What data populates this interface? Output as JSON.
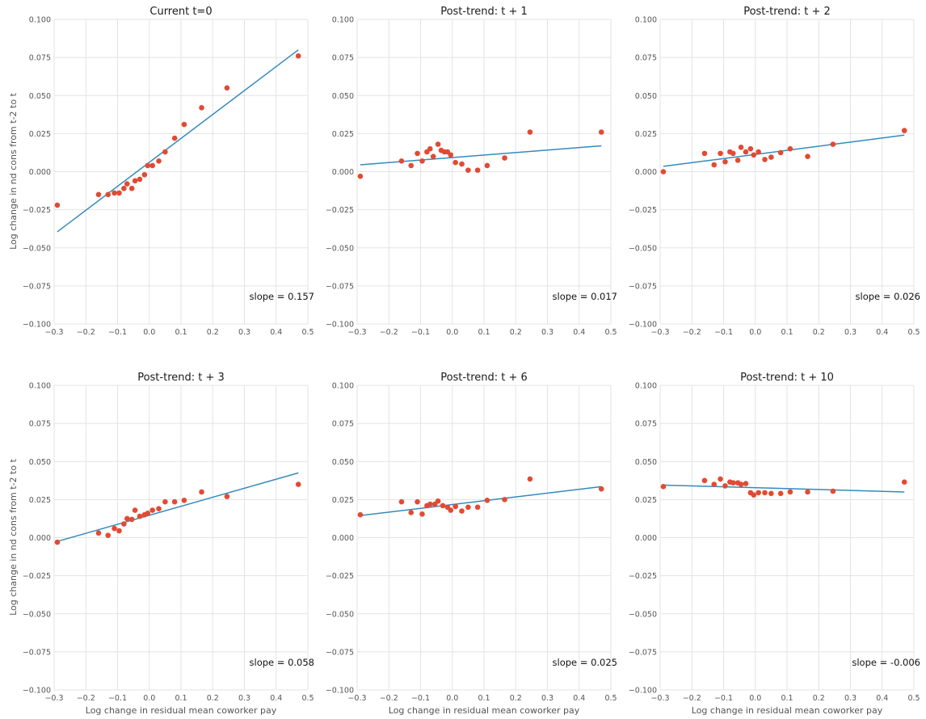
{
  "figure": {
    "ylabel": "Log change in nd cons from t-2 to t",
    "xlabel": "Log change in residual mean coworker pay"
  },
  "chart_data": [
    {
      "type": "scatter",
      "title": "Current t=0",
      "xlim": [
        -0.3,
        0.5
      ],
      "ylim": [
        -0.1,
        0.1
      ],
      "xticks": [
        "−0.3",
        "−0.2",
        "−0.1",
        "0.0",
        "0.1",
        "0.2",
        "0.3",
        "0.4",
        "0.5"
      ],
      "yticks": [
        "−0.100",
        "−0.075",
        "−0.050",
        "−0.025",
        "0.000",
        "0.025",
        "0.050",
        "0.075",
        "0.100"
      ],
      "grid": true,
      "x": [
        -0.29,
        -0.16,
        -0.13,
        -0.11,
        -0.095,
        -0.08,
        -0.07,
        -0.055,
        -0.045,
        -0.03,
        -0.015,
        -0.005,
        0.01,
        0.03,
        0.05,
        0.08,
        0.11,
        0.165,
        0.245,
        0.47
      ],
      "y": [
        -0.022,
        -0.015,
        -0.015,
        -0.014,
        -0.014,
        -0.011,
        -0.008,
        -0.011,
        -0.006,
        -0.005,
        -0.002,
        0.004,
        0.004,
        0.007,
        0.013,
        0.022,
        0.031,
        0.042,
        0.055,
        0.076
      ],
      "fit": {
        "x": [
          -0.29,
          0.47
        ],
        "y": [
          -0.0395,
          0.08
        ]
      },
      "annotation": "slope = 0.157"
    },
    {
      "type": "scatter",
      "title": "Post-trend: t + 1",
      "xlim": [
        -0.3,
        0.5
      ],
      "ylim": [
        -0.1,
        0.1
      ],
      "xticks": [
        "−0.3",
        "−0.2",
        "−0.1",
        "0.0",
        "0.1",
        "0.2",
        "0.3",
        "0.4",
        "0.5"
      ],
      "yticks": [
        "−0.100",
        "−0.075",
        "−0.050",
        "−0.025",
        "0.000",
        "0.025",
        "0.050",
        "0.075",
        "0.100"
      ],
      "grid": true,
      "x": [
        -0.29,
        -0.16,
        -0.13,
        -0.11,
        -0.095,
        -0.08,
        -0.07,
        -0.06,
        -0.045,
        -0.035,
        -0.025,
        -0.015,
        -0.005,
        0.01,
        0.03,
        0.05,
        0.08,
        0.11,
        0.165,
        0.245,
        0.47
      ],
      "y": [
        -0.003,
        0.007,
        0.004,
        0.012,
        0.007,
        0.013,
        0.015,
        0.01,
        0.018,
        0.014,
        0.013,
        0.013,
        0.011,
        0.006,
        0.005,
        0.001,
        0.001,
        0.004,
        0.009,
        0.026,
        0.026
      ],
      "fit": {
        "x": [
          -0.29,
          0.47
        ],
        "y": [
          0.0045,
          0.017
        ]
      },
      "annotation": "slope = 0.017"
    },
    {
      "type": "scatter",
      "title": "Post-trend: t + 2",
      "xlim": [
        -0.3,
        0.5
      ],
      "ylim": [
        -0.1,
        0.1
      ],
      "xticks": [
        "−0.3",
        "−0.2",
        "−0.1",
        "0.0",
        "0.1",
        "0.2",
        "0.3",
        "0.4",
        "0.5"
      ],
      "yticks": [
        "−0.100",
        "−0.075",
        "−0.050",
        "−0.025",
        "0.000",
        "0.025",
        "0.050",
        "0.075",
        "0.100"
      ],
      "grid": true,
      "x": [
        -0.29,
        -0.16,
        -0.13,
        -0.11,
        -0.095,
        -0.08,
        -0.07,
        -0.055,
        -0.045,
        -0.03,
        -0.015,
        -0.005,
        0.01,
        0.03,
        0.05,
        0.08,
        0.11,
        0.165,
        0.245,
        0.47
      ],
      "y": [
        0.0,
        0.012,
        0.0045,
        0.012,
        0.0065,
        0.013,
        0.012,
        0.0075,
        0.016,
        0.013,
        0.015,
        0.011,
        0.013,
        0.008,
        0.0095,
        0.0125,
        0.015,
        0.01,
        0.018,
        0.027
      ],
      "fit": {
        "x": [
          -0.29,
          0.47
        ],
        "y": [
          0.0035,
          0.024
        ]
      },
      "annotation": "slope = 0.026"
    },
    {
      "type": "scatter",
      "title": "Post-trend: t + 3",
      "xlim": [
        -0.3,
        0.5
      ],
      "ylim": [
        -0.1,
        0.1
      ],
      "xticks": [
        "−0.3",
        "−0.2",
        "−0.1",
        "0.0",
        "0.1",
        "0.2",
        "0.3",
        "0.4",
        "0.5"
      ],
      "yticks": [
        "−0.100",
        "−0.075",
        "−0.050",
        "−0.025",
        "0.000",
        "0.025",
        "0.050",
        "0.075",
        "0.100"
      ],
      "grid": true,
      "x": [
        -0.29,
        -0.16,
        -0.13,
        -0.11,
        -0.095,
        -0.08,
        -0.07,
        -0.055,
        -0.045,
        -0.03,
        -0.015,
        -0.005,
        0.01,
        0.03,
        0.05,
        0.08,
        0.11,
        0.165,
        0.245,
        0.47
      ],
      "y": [
        -0.003,
        0.003,
        0.0015,
        0.006,
        0.0045,
        0.009,
        0.0125,
        0.012,
        0.018,
        0.014,
        0.015,
        0.016,
        0.018,
        0.019,
        0.0235,
        0.0235,
        0.0245,
        0.03,
        0.027,
        0.035
      ],
      "fit": {
        "x": [
          -0.29,
          0.47
        ],
        "y": [
          -0.0025,
          0.0425
        ]
      },
      "annotation": "slope = 0.058"
    },
    {
      "type": "scatter",
      "title": "Post-trend: t + 6",
      "xlim": [
        -0.3,
        0.5
      ],
      "ylim": [
        -0.1,
        0.1
      ],
      "xticks": [
        "−0.3",
        "−0.2",
        "−0.1",
        "0.0",
        "0.1",
        "0.2",
        "0.3",
        "0.4",
        "0.5"
      ],
      "yticks": [
        "−0.100",
        "−0.075",
        "−0.050",
        "−0.025",
        "0.000",
        "0.025",
        "0.050",
        "0.075",
        "0.100"
      ],
      "grid": true,
      "x": [
        -0.29,
        -0.16,
        -0.13,
        -0.11,
        -0.095,
        -0.08,
        -0.07,
        -0.055,
        -0.045,
        -0.03,
        -0.015,
        -0.005,
        0.01,
        0.03,
        0.05,
        0.08,
        0.11,
        0.165,
        0.245,
        0.47
      ],
      "y": [
        0.015,
        0.0235,
        0.0165,
        0.0235,
        0.0155,
        0.021,
        0.022,
        0.022,
        0.024,
        0.021,
        0.02,
        0.018,
        0.0205,
        0.0175,
        0.02,
        0.02,
        0.0245,
        0.025,
        0.0385,
        0.032
      ],
      "fit": {
        "x": [
          -0.29,
          0.47
        ],
        "y": [
          0.0145,
          0.0335
        ]
      },
      "annotation": "slope = 0.025"
    },
    {
      "type": "scatter",
      "title": "Post-trend: t + 10",
      "xlim": [
        -0.3,
        0.5
      ],
      "ylim": [
        -0.1,
        0.1
      ],
      "xticks": [
        "−0.3",
        "−0.2",
        "−0.1",
        "0.0",
        "0.1",
        "0.2",
        "0.3",
        "0.4",
        "0.5"
      ],
      "yticks": [
        "−0.100",
        "−0.075",
        "−0.050",
        "−0.025",
        "0.000",
        "0.025",
        "0.050",
        "0.075",
        "0.100"
      ],
      "grid": true,
      "x": [
        -0.29,
        -0.16,
        -0.13,
        -0.11,
        -0.095,
        -0.08,
        -0.07,
        -0.055,
        -0.045,
        -0.03,
        -0.015,
        -0.005,
        0.01,
        0.03,
        0.05,
        0.08,
        0.11,
        0.165,
        0.245,
        0.47
      ],
      "y": [
        0.0335,
        0.0375,
        0.035,
        0.0385,
        0.034,
        0.0365,
        0.036,
        0.036,
        0.035,
        0.0355,
        0.0295,
        0.028,
        0.0295,
        0.0295,
        0.029,
        0.029,
        0.03,
        0.03,
        0.0305,
        0.0365
      ],
      "fit": {
        "x": [
          -0.29,
          0.47
        ],
        "y": [
          0.0345,
          0.03
        ]
      },
      "annotation": "slope = -0.006"
    }
  ]
}
